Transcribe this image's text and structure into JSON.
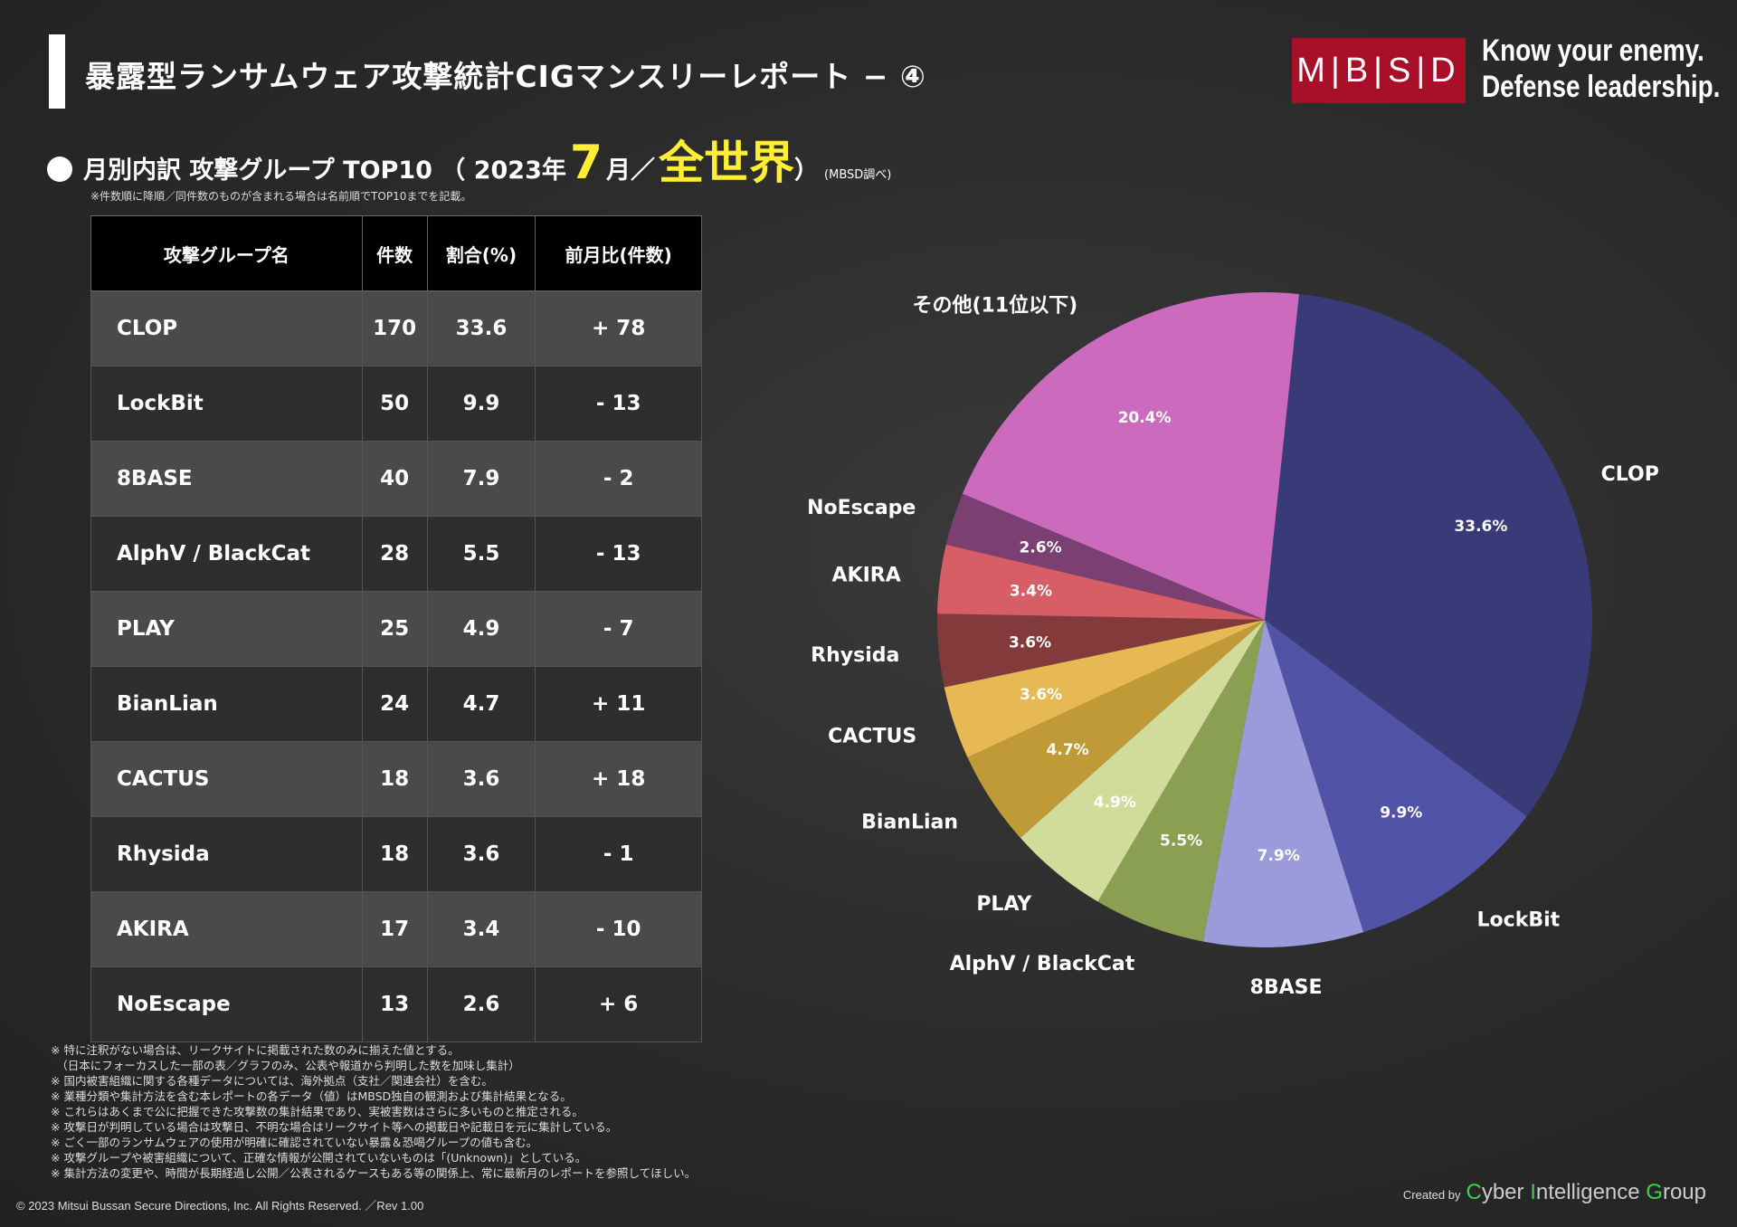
{
  "header": {
    "title": "暴露型ランサムウェア攻撃統計CIGマンスリーレポート − ④",
    "logo_text": "M|B|S|D",
    "tagline_line1": "Know your enemy.",
    "tagline_line2": "Defense leadership."
  },
  "subtitle": {
    "prefix": "月別内訳 攻撃グループ TOP10 （ 2023年",
    "month": "7",
    "month_suffix": "月／",
    "region": "全世界",
    "close": "）",
    "source": "(MBSD調べ)"
  },
  "table_note": "※件数順に降順／同件数のものが含まれる場合は名前順でTOP10までを記載。",
  "table": {
    "headers": [
      "攻撃グループ名",
      "件数",
      "割合(%)",
      "前月比(件数)"
    ],
    "rows": [
      {
        "name": "CLOP",
        "count": "170",
        "pct": "33.6",
        "change": "+ 78"
      },
      {
        "name": "LockBit",
        "count": "50",
        "pct": "9.9",
        "change": "- 13"
      },
      {
        "name": "8BASE",
        "count": "40",
        "pct": "7.9",
        "change": "- 2"
      },
      {
        "name": "AlphV / BlackCat",
        "count": "28",
        "pct": "5.5",
        "change": "- 13"
      },
      {
        "name": "PLAY",
        "count": "25",
        "pct": "4.9",
        "change": "- 7"
      },
      {
        "name": "BianLian",
        "count": "24",
        "pct": "4.7",
        "change": "+ 11"
      },
      {
        "name": "CACTUS",
        "count": "18",
        "pct": "3.6",
        "change": "+ 18"
      },
      {
        "name": "Rhysida",
        "count": "18",
        "pct": "3.6",
        "change": "- 1"
      },
      {
        "name": "AKIRA",
        "count": "17",
        "pct": "3.4",
        "change": "- 10"
      },
      {
        "name": "NoEscape",
        "count": "13",
        "pct": "2.6",
        "change": "+ 6"
      }
    ]
  },
  "chart_data": {
    "type": "pie",
    "title": "",
    "slices": [
      {
        "label": "CLOP",
        "value": 33.6,
        "value_label": "33.6%",
        "color": "#383b78"
      },
      {
        "label": "LockBit",
        "value": 9.9,
        "value_label": "9.9%",
        "color": "#5053a6"
      },
      {
        "label": "8BASE",
        "value": 7.9,
        "value_label": "7.9%",
        "color": "#9b9bdc"
      },
      {
        "label": "AlphV / BlackCat",
        "value": 5.5,
        "value_label": "5.5%",
        "color": "#8b9f52"
      },
      {
        "label": "PLAY",
        "value": 4.9,
        "value_label": "4.9%",
        "color": "#d2dc9a"
      },
      {
        "label": "BianLian",
        "value": 4.7,
        "value_label": "4.7%",
        "color": "#c09a36"
      },
      {
        "label": "CACTUS",
        "value": 3.6,
        "value_label": "3.6%",
        "color": "#e6b955"
      },
      {
        "label": "Rhysida",
        "value": 3.6,
        "value_label": "3.6%",
        "color": "#833a3a"
      },
      {
        "label": "AKIRA",
        "value": 3.4,
        "value_label": "3.4%",
        "color": "#d75e66"
      },
      {
        "label": "NoEscape",
        "value": 2.6,
        "value_label": "2.6%",
        "color": "#7c3f72"
      },
      {
        "label": "その他(11位以下)",
        "value": 20.4,
        "value_label": "20.4%",
        "color": "#cc6bbe"
      }
    ],
    "start": "12 o'clock, clockwise"
  },
  "notes": [
    "※ 特に注釈がない場合は、リークサイトに掲載された数のみに揃えた値とする。",
    "　（日本にフォーカスした一部の表／グラフのみ、公表や報道から判明した数を加味し集計）",
    "※ 国内被害組織に関する各種データについては、海外拠点（支社／関連会社）を含む。",
    "※ 業種分類や集計方法を含む本レポートの各データ（値）はMBSD独自の観測および集計結果となる。",
    "※ これらはあくまで公に把握できた攻撃数の集計結果であり、実被害数はさらに多いものと推定される。",
    "※ 攻撃日が判明している場合は攻撃日、不明な場合はリークサイト等への掲載日や記載日を元に集計している。",
    "※ ごく一部のランサムウェアの使用が明確に確認されていない暴露＆恐喝グループの値も含む。",
    "※ 攻撃グループや被害組織について、正確な情報が公開されていないものは「(Unknown)」としている。",
    "※ 集計方法の変更や、時間が長期経過し公開／公表されるケースもある等の関係上、常に最新月のレポートを参照してほしい。"
  ],
  "footer": {
    "copyright": "© 2023 Mitsui Bussan Secure Directions, Inc.  All Rights Reserved. ／Rev 1.00",
    "created_by": "Created by",
    "cig_c": "C",
    "cig_1": "yber ",
    "cig_i": "I",
    "cig_2": "ntelligence ",
    "cig_g": "G",
    "cig_3": "roup"
  }
}
